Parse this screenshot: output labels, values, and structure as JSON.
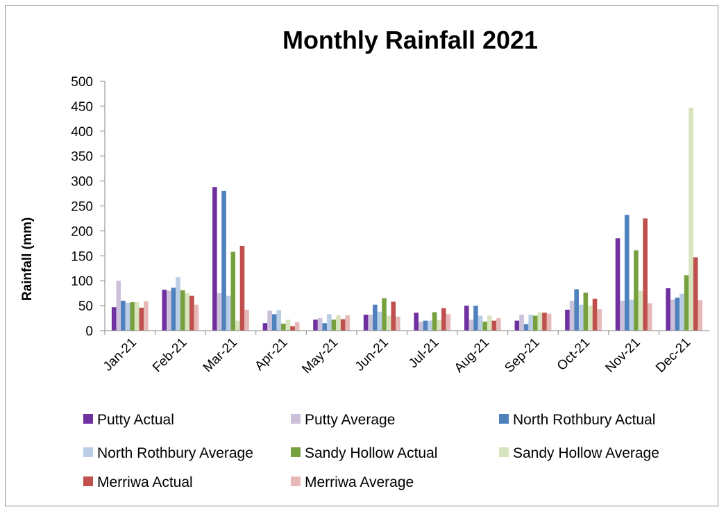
{
  "chart_data": {
    "type": "bar",
    "title": "Monthly Rainfall 2021",
    "xlabel": "",
    "ylabel": "Rainfall (mm)",
    "ylim": [
      0,
      500
    ],
    "yticks": [
      0,
      50,
      100,
      150,
      200,
      250,
      300,
      350,
      400,
      450,
      500
    ],
    "grid": false,
    "legend_position": "bottom",
    "categories": [
      "Jan-21",
      "Feb-21",
      "Mar-21",
      "Apr-21",
      "May-21",
      "Jun-21",
      "Jul-21",
      "Aug-21",
      "Sep-21",
      "Oct-21",
      "Nov-21",
      "Dec-21"
    ],
    "series": [
      {
        "name": "Putty Actual",
        "color": "#7030a0",
        "values": [
          47,
          82,
          288,
          15,
          22,
          32,
          36,
          50,
          20,
          42,
          185,
          85
        ]
      },
      {
        "name": "Putty Average",
        "color": "#ccc1da",
        "values": [
          100,
          80,
          75,
          40,
          25,
          32,
          18,
          22,
          32,
          60,
          60,
          62
        ]
      },
      {
        "name": "North Rothbury Actual",
        "color": "#4f81bd",
        "values": [
          60,
          86,
          280,
          33,
          15,
          52,
          20,
          50,
          13,
          83,
          232,
          66
        ]
      },
      {
        "name": "North Rothbury Average",
        "color": "#b9cde5",
        "values": [
          56,
          107,
          70,
          41,
          33,
          38,
          20,
          30,
          32,
          52,
          62,
          74
        ]
      },
      {
        "name": "Sandy Hollow Actual",
        "color": "#77a13f",
        "values": [
          57,
          81,
          158,
          14,
          22,
          65,
          37,
          18,
          30,
          76,
          161,
          111
        ]
      },
      {
        "name": "Sandy Hollow Average",
        "color": "#d7e4bd",
        "values": [
          57,
          75,
          20,
          22,
          31,
          30,
          21,
          30,
          37,
          50,
          80,
          447
        ]
      },
      {
        "name": "Merriwa Actual",
        "color": "#c0504d",
        "values": [
          46,
          70,
          170,
          9,
          23,
          58,
          45,
          20,
          36,
          64,
          225,
          147
        ]
      },
      {
        "name": "Merriwa Average",
        "color": "#e6b9b8",
        "values": [
          59,
          52,
          42,
          17,
          31,
          28,
          33,
          25,
          34,
          43,
          55,
          61
        ]
      }
    ]
  }
}
